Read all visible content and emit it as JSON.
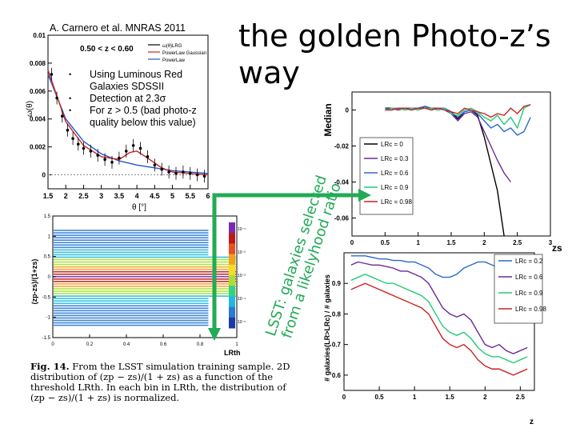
{
  "slide": {
    "title": "the golden Photo-z’s way",
    "citation": "A. Carnero et al. MNRAS 2011",
    "bullets": [
      "Using Luminous Red Galaxies SDSSII",
      "Detection at 2.3σ",
      "For z > 0.5 (bad photo-z quality below this value)"
    ],
    "arrow_note_line1": "LSST: galaxies selected",
    "arrow_note_line2": "from a likelyhood ratio",
    "arrow_color": "#22aa55"
  },
  "figure_caption": {
    "label": "Fig. 14.",
    "text": "From the LSST simulation training sample. 2D distribution of (zp − zs)/(1 + zs) as a function of the threshold LRth. In each bin in LRth, the distribution of (zp − zs)/(1 + zs) is normalized."
  },
  "chart_data": [
    {
      "type": "scatter",
      "panel": "correlation",
      "title": "0.50 < z < 0.60",
      "xlabel": "θ [°]",
      "ylabel": "ω(θ)",
      "xlim": [
        1.5,
        6
      ],
      "ylim": [
        -0.001,
        0.01
      ],
      "xticks": [
        "1.5",
        "2",
        "2.5",
        "3",
        "3.5",
        "4",
        "4.5",
        "5",
        "5.5",
        "6"
      ],
      "yticks": [
        "0",
        "0.002",
        "0.004",
        "0.006",
        "0.008",
        "0.01"
      ],
      "legend": [
        "ω(θ)LRG",
        "PowerLaw Gaussian",
        "PowerLaw"
      ],
      "series_colors": [
        "#000000",
        "#cc2222",
        "#2255cc"
      ],
      "points": {
        "x": [
          1.6,
          1.75,
          1.9,
          2.05,
          2.2,
          2.35,
          2.5,
          2.7,
          2.9,
          3.1,
          3.3,
          3.5,
          3.7,
          3.9,
          4.1,
          4.3,
          4.5,
          4.7,
          4.9,
          5.1,
          5.3,
          5.5,
          5.7,
          5.9
        ],
        "y": [
          0.0072,
          0.0055,
          0.0042,
          0.0032,
          0.0026,
          0.0022,
          0.0019,
          0.0017,
          0.0014,
          0.0011,
          0.0009,
          0.0012,
          0.0017,
          0.0021,
          0.0019,
          0.0013,
          0.0007,
          0.0004,
          0.0002,
          0.0001,
          0.0002,
          0.0001,
          0.0,
          -0.0001
        ]
      },
      "fit_gaussian": {
        "x": [
          1.5,
          2,
          2.5,
          3,
          3.5,
          3.8,
          4,
          4.3,
          4.7,
          5,
          5.5,
          6
        ],
        "y": [
          0.0075,
          0.0038,
          0.0021,
          0.0013,
          0.0011,
          0.0016,
          0.0017,
          0.0012,
          0.0005,
          0.0002,
          0.0001,
          0.0
        ]
      },
      "fit_powerlaw": {
        "x": [
          1.5,
          2,
          2.5,
          3,
          3.5,
          4,
          4.5,
          5,
          5.5,
          6
        ],
        "y": [
          0.0072,
          0.004,
          0.0024,
          0.0015,
          0.001,
          0.0007,
          0.0005,
          0.0003,
          0.0002,
          0.0001
        ]
      }
    },
    {
      "type": "heatmap",
      "panel": "lsst-2d",
      "xlabel": "LRth",
      "ylabel": "(zp-zs)/(1+zs)",
      "xlim": [
        0,
        1
      ],
      "ylim": [
        -1.5,
        1.5
      ],
      "xticks": [
        "0",
        "0.2",
        "0.4",
        "0.6",
        "0.8",
        "1"
      ],
      "yticks": [
        "1.5",
        "1",
        "0.5",
        "0",
        "-0.5",
        "-1",
        "-1.5"
      ],
      "colorbar_ticks": [
        "10⁻¹",
        "10⁻²",
        "10⁻³",
        "10⁻⁴",
        "10⁻⁵"
      ]
    },
    {
      "type": "line",
      "panel": "median",
      "xlabel": "zs",
      "ylabel": "Median",
      "xlim": [
        0,
        3
      ],
      "ylim": [
        -0.07,
        0.01
      ],
      "xticks": [
        "0",
        "0.5",
        "1",
        "1.5",
        "2",
        "2.5",
        "3"
      ],
      "yticks": [
        "0",
        "-0.02",
        "-0.04",
        "-0.06"
      ],
      "x": [
        0.5,
        0.6,
        0.7,
        0.8,
        0.9,
        1.0,
        1.1,
        1.2,
        1.3,
        1.4,
        1.5,
        1.6,
        1.7,
        1.8,
        1.9,
        2.0,
        2.1,
        2.2,
        2.3,
        2.4,
        2.5,
        2.6,
        2.7
      ],
      "series": [
        {
          "name": "LRc = 0",
          "color": "#000000",
          "values": [
            0.001,
            0.001,
            0.0,
            0.001,
            0.0,
            0.001,
            0.002,
            0.001,
            0.0,
            0.001,
            -0.001,
            -0.005,
            -0.001,
            0.0,
            -0.003,
            -0.015,
            -0.03,
            -0.045,
            -0.07,
            null,
            null,
            null,
            null
          ]
        },
        {
          "name": "LRc = 0.3",
          "color": "#6a2a9a",
          "values": [
            0.0,
            0.001,
            0.0,
            0.001,
            0.001,
            0.0,
            0.002,
            0.001,
            0.001,
            0.0,
            -0.002,
            -0.006,
            -0.002,
            -0.001,
            -0.004,
            -0.012,
            -0.02,
            -0.028,
            -0.035,
            -0.04,
            null,
            null,
            null
          ]
        },
        {
          "name": "LRc = 0.6",
          "color": "#2a6acc",
          "values": [
            0.001,
            0.0,
            0.001,
            0.0,
            0.001,
            0.001,
            0.002,
            0.0,
            0.001,
            0.001,
            -0.001,
            -0.004,
            -0.001,
            0.0,
            -0.002,
            -0.006,
            -0.01,
            -0.008,
            -0.012,
            -0.01,
            -0.014,
            -0.012,
            -0.004
          ]
        },
        {
          "name": "LRc = 0.9",
          "color": "#22cc77",
          "values": [
            0.0,
            0.001,
            0.001,
            0.0,
            0.001,
            0.0,
            0.001,
            0.001,
            0.0,
            0.001,
            -0.002,
            -0.003,
            0.0,
            0.001,
            -0.001,
            -0.004,
            -0.006,
            -0.003,
            -0.008,
            -0.004,
            -0.01,
            0.001,
            0.003
          ]
        },
        {
          "name": "LRc = 0.98",
          "color": "#cc2222",
          "values": [
            0.0,
            0.0,
            0.001,
            0.001,
            0.0,
            0.001,
            0.001,
            0.0,
            0.001,
            0.0,
            -0.001,
            -0.002,
            0.001,
            0.0,
            -0.001,
            -0.002,
            -0.004,
            -0.002,
            -0.003,
            0.001,
            -0.002,
            0.002,
            0.003
          ]
        }
      ]
    },
    {
      "type": "line",
      "panel": "fraction",
      "xlabel": "z",
      "ylabel": "# galaxies(LR>LRc) / # galaxies",
      "xlim": [
        0,
        2.7
      ],
      "ylim": [
        0.55,
        1.0
      ],
      "xticks": [
        "0",
        "0.5",
        "1",
        "1.5",
        "2",
        "2.5"
      ],
      "yticks": [
        "0.9",
        "0.8",
        "0.7",
        "0.6"
      ],
      "x": [
        0.1,
        0.2,
        0.3,
        0.4,
        0.5,
        0.6,
        0.7,
        0.8,
        0.9,
        1.0,
        1.1,
        1.2,
        1.3,
        1.4,
        1.5,
        1.6,
        1.7,
        1.8,
        1.9,
        2.0,
        2.1,
        2.2,
        2.3,
        2.4,
        2.5,
        2.6
      ],
      "series": [
        {
          "name": "LRc = 0.2",
          "color": "#2a6acc",
          "values": [
            0.99,
            0.99,
            0.99,
            0.985,
            0.98,
            0.98,
            0.975,
            0.975,
            0.97,
            0.97,
            0.96,
            0.95,
            0.93,
            0.92,
            0.92,
            0.93,
            0.95,
            0.96,
            0.97,
            0.97,
            0.96,
            0.95,
            0.96,
            0.97,
            0.97,
            0.98
          ]
        },
        {
          "name": "LRc = 0.6",
          "color": "#6a2a9a",
          "values": [
            0.96,
            0.97,
            0.965,
            0.96,
            0.96,
            0.955,
            0.95,
            0.94,
            0.94,
            0.93,
            0.92,
            0.9,
            0.86,
            0.82,
            0.8,
            0.79,
            0.8,
            0.78,
            0.74,
            0.7,
            0.69,
            0.7,
            0.68,
            0.67,
            0.68,
            0.69
          ]
        },
        {
          "name": "LRc = 0.9",
          "color": "#22cc77",
          "values": [
            0.91,
            0.92,
            0.93,
            0.92,
            0.91,
            0.9,
            0.9,
            0.89,
            0.88,
            0.87,
            0.86,
            0.84,
            0.8,
            0.76,
            0.74,
            0.73,
            0.74,
            0.72,
            0.69,
            0.67,
            0.66,
            0.66,
            0.65,
            0.64,
            0.65,
            0.66
          ]
        },
        {
          "name": "LRc = 0.98",
          "color": "#cc2222",
          "values": [
            0.88,
            0.89,
            0.9,
            0.89,
            0.88,
            0.87,
            0.86,
            0.85,
            0.84,
            0.83,
            0.82,
            0.8,
            0.76,
            0.72,
            0.7,
            0.69,
            0.7,
            0.68,
            0.65,
            0.63,
            0.62,
            0.62,
            0.61,
            0.6,
            0.61,
            0.62
          ]
        }
      ]
    }
  ]
}
